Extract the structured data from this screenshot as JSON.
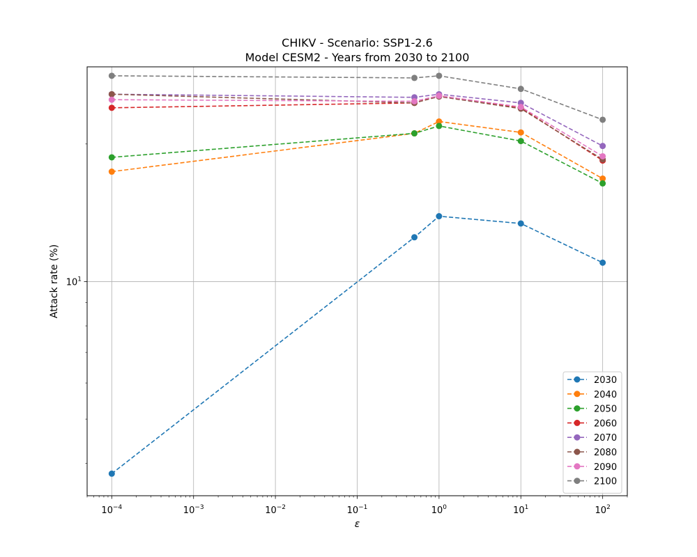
{
  "chart_data": {
    "type": "line",
    "title": "CHIKV - Scenario: SSP1-2.6",
    "subtitle": "Model CESM2 - Years from 2030 to 2100",
    "xlabel": "ε",
    "ylabel": "Attack rate (%)",
    "xscale": "log",
    "yscale": "log",
    "xlim": [
      5e-05,
      200
    ],
    "ylim": [
      3.4,
      29.5
    ],
    "grid": true,
    "legend_position": "lower-right",
    "x_ticks": [
      {
        "value": 0.0001,
        "base": "10",
        "exp": "−4"
      },
      {
        "value": 0.001,
        "base": "10",
        "exp": "−3"
      },
      {
        "value": 0.01,
        "base": "10",
        "exp": "−2"
      },
      {
        "value": 0.1,
        "base": "10",
        "exp": "−1"
      },
      {
        "value": 1,
        "base": "10",
        "exp": "0"
      },
      {
        "value": 10,
        "base": "10",
        "exp": "1"
      },
      {
        "value": 100,
        "base": "10",
        "exp": "2"
      }
    ],
    "y_ticks": [
      {
        "value": 10,
        "base": "10",
        "exp": "1"
      }
    ],
    "x": [
      0.0001,
      0.5,
      1,
      10,
      100
    ],
    "series": [
      {
        "name": "2030",
        "color": "#1f77b4",
        "values": [
          3.8,
          12.5,
          13.9,
          13.4,
          11.0
        ]
      },
      {
        "name": "2040",
        "color": "#ff7f0e",
        "values": [
          17.4,
          21.1,
          22.4,
          21.2,
          16.8
        ]
      },
      {
        "name": "2050",
        "color": "#2ca02c",
        "values": [
          18.7,
          21.1,
          21.9,
          20.3,
          16.4
        ]
      },
      {
        "name": "2060",
        "color": "#d62728",
        "values": [
          24.0,
          24.6,
          25.5,
          24.0,
          18.4
        ]
      },
      {
        "name": "2070",
        "color": "#9467bd",
        "values": [
          25.7,
          25.3,
          25.7,
          24.6,
          19.8
        ]
      },
      {
        "name": "2080",
        "color": "#8c564b",
        "values": [
          25.7,
          24.6,
          25.4,
          23.9,
          18.5
        ]
      },
      {
        "name": "2090",
        "color": "#e377c2",
        "values": [
          25.0,
          24.8,
          25.5,
          24.1,
          18.8
        ]
      },
      {
        "name": "2100",
        "color": "#7f7f7f",
        "values": [
          28.2,
          27.9,
          28.2,
          26.4,
          22.6
        ]
      }
    ]
  }
}
